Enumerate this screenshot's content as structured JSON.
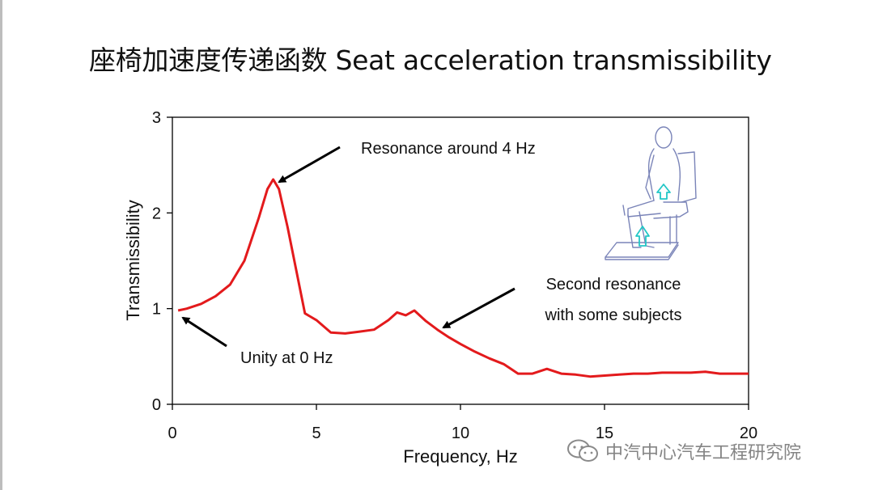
{
  "slide": {
    "title": "座椅加速度传递函数 Seat acceleration transmissibility"
  },
  "watermark": {
    "text": "中汽中心汽车工程研究院",
    "icon": "wechat-icon"
  },
  "colors": {
    "curve": "#e31a1c",
    "cue_arrow": "#22c7c7",
    "axis": "#000000"
  },
  "chart_data": {
    "type": "line",
    "xlabel": "Frequency, Hz",
    "ylabel": "Transmissibility",
    "xlim": [
      0,
      20
    ],
    "ylim": [
      0,
      3
    ],
    "xticks": [
      0,
      5,
      10,
      15,
      20
    ],
    "yticks": [
      0,
      1,
      2,
      3
    ],
    "grid": false,
    "series": [
      {
        "name": "",
        "x": [
          0.2,
          0.5,
          1.0,
          1.5,
          2.0,
          2.5,
          3.0,
          3.3,
          3.5,
          3.7,
          4.0,
          4.3,
          4.6,
          5.0,
          5.5,
          6.0,
          6.5,
          7.0,
          7.5,
          7.8,
          8.1,
          8.4,
          8.8,
          9.2,
          9.6,
          10.0,
          10.5,
          11.0,
          11.5,
          12.0,
          12.5,
          13.0,
          13.5,
          14.0,
          14.5,
          15.0,
          15.5,
          16.0,
          16.5,
          17.0,
          17.5,
          18.0,
          18.5,
          19.0,
          19.5,
          20.0
        ],
        "y": [
          0.98,
          1.0,
          1.05,
          1.13,
          1.25,
          1.5,
          1.95,
          2.25,
          2.35,
          2.25,
          1.85,
          1.4,
          0.95,
          0.88,
          0.75,
          0.74,
          0.76,
          0.78,
          0.88,
          0.96,
          0.93,
          0.98,
          0.87,
          0.78,
          0.7,
          0.63,
          0.55,
          0.48,
          0.42,
          0.32,
          0.32,
          0.37,
          0.32,
          0.31,
          0.29,
          0.3,
          0.31,
          0.32,
          0.32,
          0.33,
          0.33,
          0.33,
          0.34,
          0.32,
          0.32,
          0.32
        ]
      }
    ],
    "annotations": [
      {
        "text": "Resonance around 4 Hz",
        "lines": [
          "Resonance around 4 Hz"
        ],
        "target": [
          3.6,
          2.35
        ]
      },
      {
        "text": "Second resonance with some subjects",
        "lines": [
          "Second resonance",
          "with some subjects"
        ],
        "target": [
          9.2,
          0.8
        ]
      },
      {
        "text": "Unity at 0 Hz",
        "lines": [
          "Unity at 0 Hz"
        ],
        "target": [
          0.25,
          0.93
        ]
      }
    ]
  }
}
